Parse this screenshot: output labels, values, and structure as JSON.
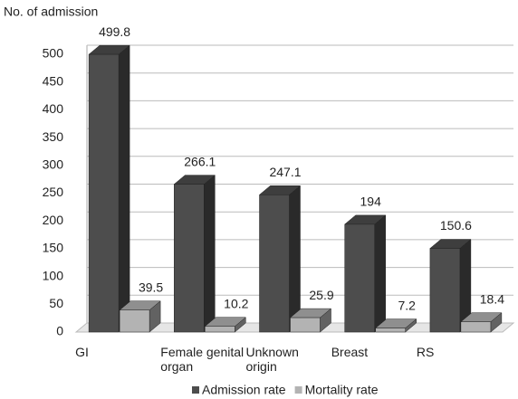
{
  "chart_data": {
    "type": "bar3d",
    "y_label": "No. of admission",
    "categories": [
      "GI",
      "Female genital organ",
      "Unknown origin",
      "Breast",
      "RS"
    ],
    "series": [
      {
        "name": "Admission rate",
        "color": "#4d4d4d",
        "values": [
          499.8,
          266.1,
          247.1,
          194,
          150.6
        ]
      },
      {
        "name": "Mortality rate",
        "color": "#b3b3b3",
        "values": [
          39.5,
          10.2,
          25.9,
          7.2,
          18.4
        ]
      }
    ],
    "ylim": [
      0,
      500
    ],
    "yticks": [
      0,
      50,
      100,
      150,
      200,
      250,
      300,
      350,
      400,
      450,
      500
    ],
    "grid": true,
    "legend": "bottom"
  }
}
